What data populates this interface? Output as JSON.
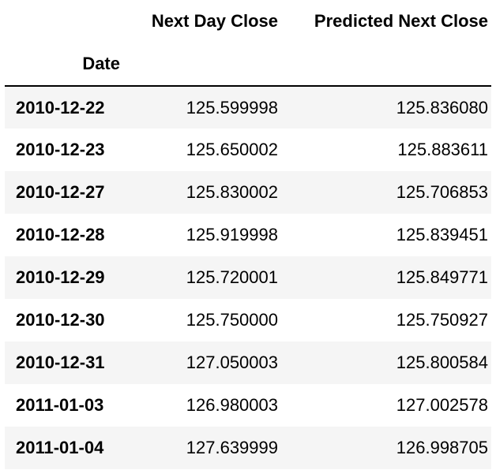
{
  "table": {
    "columns": [
      "Next Day Close",
      "Predicted Next Close"
    ],
    "index_name": "Date",
    "rows": [
      {
        "date": "2010-12-22",
        "next_day_close": "125.599998",
        "predicted_next_close": "125.836080"
      },
      {
        "date": "2010-12-23",
        "next_day_close": "125.650002",
        "predicted_next_close": "125.883611"
      },
      {
        "date": "2010-12-27",
        "next_day_close": "125.830002",
        "predicted_next_close": "125.706853"
      },
      {
        "date": "2010-12-28",
        "next_day_close": "125.919998",
        "predicted_next_close": "125.839451"
      },
      {
        "date": "2010-12-29",
        "next_day_close": "125.720001",
        "predicted_next_close": "125.849771"
      },
      {
        "date": "2010-12-30",
        "next_day_close": "125.750000",
        "predicted_next_close": "125.750927"
      },
      {
        "date": "2010-12-31",
        "next_day_close": "127.050003",
        "predicted_next_close": "125.800584"
      },
      {
        "date": "2011-01-03",
        "next_day_close": "126.980003",
        "predicted_next_close": "127.002578"
      },
      {
        "date": "2011-01-04",
        "next_day_close": "127.639999",
        "predicted_next_close": "126.998705"
      }
    ]
  }
}
